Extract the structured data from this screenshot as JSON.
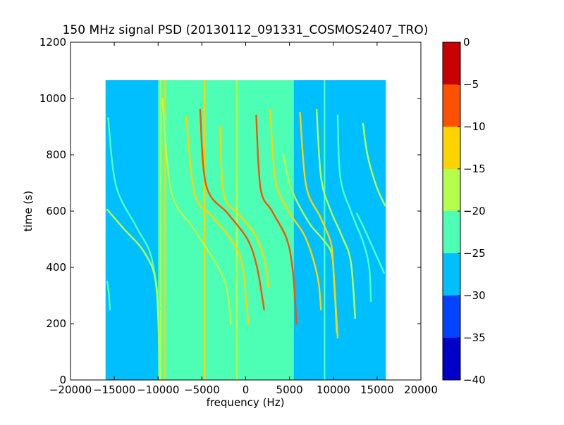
{
  "chart_data": {
    "type": "heatmap",
    "title": "150 MHz signal PSD (20130112_091331_COSMOS2407_TRO)",
    "xlabel": "frequency (Hz)",
    "ylabel": "time (s)",
    "xlim": [
      -20000,
      20000
    ],
    "ylim": [
      0,
      1200
    ],
    "xticks": [
      -20000,
      -15000,
      -10000,
      -5000,
      0,
      5000,
      10000,
      15000,
      20000
    ],
    "xtick_labels": [
      "−20000",
      "−15000",
      "−10000",
      "−5000",
      "0",
      "5000",
      "10000",
      "15000",
      "20000"
    ],
    "yticks": [
      0,
      200,
      400,
      600,
      800,
      1000,
      1200
    ],
    "ytick_labels": [
      "0",
      "200",
      "400",
      "600",
      "800",
      "1000",
      "1200"
    ],
    "data_extent": {
      "x": [
        -16000,
        16000
      ],
      "y": [
        0,
        1065
      ]
    },
    "background_level": -27.5,
    "noise_band": {
      "x": [
        -10000,
        5500
      ],
      "level": -22.5
    },
    "colorbar": {
      "levels": [
        -40,
        -35,
        -30,
        -25,
        -20,
        -15,
        -10,
        -5,
        0
      ],
      "tick_labels": [
        "−40",
        "−35",
        "−30",
        "−25",
        "−20",
        "−15",
        "−10",
        "−5",
        "0"
      ],
      "colors": [
        "#0000c8",
        "#0044ff",
        "#00bfff",
        "#4dffb4",
        "#b4ff4c",
        "#ffd300",
        "#ff5000",
        "#c80000"
      ]
    },
    "vertical_lines": [
      {
        "freq": -10900,
        "y": [
          0,
          1065
        ],
        "level": -27.5
      },
      {
        "freq": -9700,
        "y": [
          0,
          1065
        ],
        "level": -17.5
      },
      {
        "freq": -9200,
        "y": [
          0,
          1065
        ],
        "level": -12.5
      },
      {
        "freq": -4700,
        "y": [
          0,
          1065
        ],
        "level": -12.5
      },
      {
        "freq": -1000,
        "y": [
          0,
          1065
        ],
        "level": -17.5
      },
      {
        "freq": 9000,
        "y": [
          0,
          1065
        ],
        "level": -22.5
      },
      {
        "freq": 9300,
        "y": [
          0,
          1065
        ],
        "level": -27.5
      }
    ],
    "traces": [
      {
        "name": "",
        "level": -22.5,
        "points": [
          [
            -15700,
            930
          ],
          [
            -14800,
            690
          ],
          [
            -12500,
            545
          ],
          [
            -10800,
            440
          ],
          [
            -9800,
            250
          ]
        ]
      },
      {
        "name": "",
        "level": -17.5,
        "points": [
          [
            -15800,
            605
          ],
          [
            -14000,
            540
          ],
          [
            -11500,
            450
          ],
          [
            -10200,
            330
          ],
          [
            -9800,
            0
          ]
        ]
      },
      {
        "name": "",
        "level": -22.5,
        "points": [
          [
            -15800,
            350
          ],
          [
            -15600,
            300
          ],
          [
            -15500,
            250
          ]
        ]
      },
      {
        "name": "",
        "level": -17.5,
        "points": [
          [
            -9500,
            1000
          ],
          [
            -8500,
            670
          ],
          [
            -6000,
            540
          ],
          [
            -3500,
            420
          ],
          [
            -2200,
            330
          ],
          [
            -1700,
            200
          ]
        ]
      },
      {
        "name": "",
        "level": -12.5,
        "points": [
          [
            -6800,
            935
          ],
          [
            -5800,
            660
          ],
          [
            -3800,
            580
          ],
          [
            -1700,
            500
          ],
          [
            -400,
            410
          ],
          [
            300,
            200
          ]
        ]
      },
      {
        "name": "",
        "level": -7.5,
        "points": [
          [
            -5200,
            960
          ],
          [
            -4500,
            690
          ],
          [
            -2000,
            590
          ],
          [
            200,
            500
          ],
          [
            1300,
            400
          ],
          [
            2100,
            250
          ]
        ]
      },
      {
        "name": "",
        "level": -12.5,
        "points": [
          [
            -2900,
            900
          ],
          [
            -2500,
            660
          ],
          [
            -800,
            590
          ],
          [
            1200,
            510
          ],
          [
            2200,
            420
          ],
          [
            2600,
            330
          ]
        ]
      },
      {
        "name": "",
        "level": -7.5,
        "points": [
          [
            1200,
            940
          ],
          [
            1700,
            680
          ],
          [
            3000,
            600
          ],
          [
            4700,
            500
          ],
          [
            5400,
            380
          ],
          [
            5800,
            200
          ]
        ]
      },
      {
        "name": "",
        "level": -12.5,
        "points": [
          [
            2800,
            960
          ],
          [
            3400,
            710
          ],
          [
            4900,
            600
          ],
          [
            6600,
            520
          ],
          [
            7600,
            440
          ],
          [
            8300,
            350
          ],
          [
            8600,
            250
          ]
        ]
      },
      {
        "name": "",
        "level": -17.5,
        "points": [
          [
            4300,
            800
          ],
          [
            5200,
            680
          ],
          [
            7200,
            560
          ],
          [
            8800,
            500
          ],
          [
            9800,
            450
          ],
          [
            10100,
            350
          ],
          [
            10400,
            170
          ]
        ]
      },
      {
        "name": "",
        "level": -12.5,
        "points": [
          [
            6200,
            950
          ],
          [
            6900,
            690
          ],
          [
            8500,
            580
          ],
          [
            9700,
            490
          ],
          [
            10000,
            400
          ],
          [
            10500,
            150
          ]
        ]
      },
      {
        "name": "",
        "level": -17.5,
        "points": [
          [
            8100,
            960
          ],
          [
            8600,
            720
          ],
          [
            9600,
            610
          ],
          [
            11000,
            510
          ],
          [
            12000,
            420
          ],
          [
            12500,
            220
          ]
        ]
      },
      {
        "name": "",
        "level": -22.5,
        "points": [
          [
            10500,
            940
          ],
          [
            10800,
            720
          ],
          [
            12000,
            600
          ],
          [
            13400,
            490
          ],
          [
            14100,
            400
          ],
          [
            14300,
            280
          ]
        ]
      },
      {
        "name": "",
        "level": -17.5,
        "points": [
          [
            13400,
            910
          ],
          [
            13900,
            800
          ],
          [
            14900,
            690
          ],
          [
            15900,
            620
          ]
        ]
      },
      {
        "name": "",
        "level": -22.5,
        "points": [
          [
            12700,
            590
          ],
          [
            13500,
            540
          ],
          [
            14800,
            450
          ],
          [
            15800,
            380
          ]
        ]
      }
    ]
  }
}
